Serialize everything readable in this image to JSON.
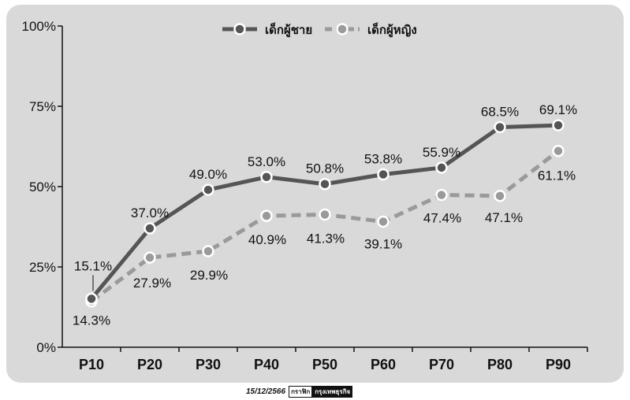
{
  "chart_data": {
    "type": "line",
    "categories": [
      "P10",
      "P20",
      "P30",
      "P40",
      "P50",
      "P60",
      "P70",
      "P80",
      "P90"
    ],
    "series": [
      {
        "name": "เด็กผู้ชาย",
        "values": [
          15.1,
          37.0,
          49.0,
          53.0,
          50.8,
          53.8,
          55.9,
          68.5,
          69.1
        ],
        "labels": [
          "15.1%",
          "37.0%",
          "49.0%",
          "53.0%",
          "50.8%",
          "53.8%",
          "55.9%",
          "68.5%",
          "69.1%"
        ],
        "color": "#555555",
        "line_style": "solid"
      },
      {
        "name": "เด็กผู้หญิง",
        "values": [
          14.3,
          27.9,
          29.9,
          40.9,
          41.3,
          39.1,
          47.4,
          47.1,
          61.1
        ],
        "labels": [
          "14.3%",
          "27.9%",
          "29.9%",
          "40.9%",
          "41.3%",
          "39.1%",
          "47.4%",
          "47.1%",
          "61.1%"
        ],
        "color": "#9a9a9a",
        "line_style": "dashed"
      }
    ],
    "yticks": [
      "0%",
      "25%",
      "50%",
      "75%",
      "100%"
    ],
    "ylim": [
      0,
      100
    ],
    "grid": false,
    "legend_position": "top-center"
  },
  "footer": {
    "date": "15/12/2566",
    "credit": "กราฟิก",
    "brand": "กรุงเทพธุรกิจ"
  }
}
